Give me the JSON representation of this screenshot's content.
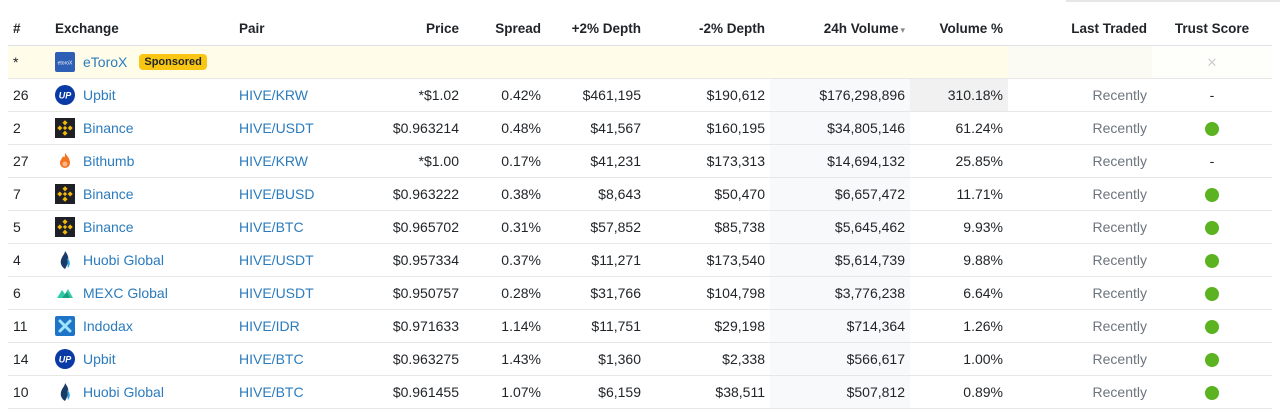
{
  "headers": {
    "rank": "#",
    "exchange": "Exchange",
    "pair": "Pair",
    "price": "Price",
    "spread": "Spread",
    "depth_plus": "+2% Depth",
    "depth_minus": "-2% Depth",
    "volume": "24h Volume",
    "volume_pct": "Volume %",
    "last_traded": "Last Traded",
    "trust": "Trust Score"
  },
  "sponsored": {
    "rank": "*",
    "exchange": "eToroX",
    "badge": "Sponsored",
    "logo_text": "etoroX"
  },
  "colors": {
    "trust_green": "#5cb322",
    "link": "#2b7bbd",
    "badge": "#f9c713"
  },
  "rows": [
    {
      "rank": "26",
      "exchange": "Upbit",
      "icon": "upbit-icon",
      "pair": "HIVE/KRW",
      "price": "*$1.02",
      "spread": "0.42%",
      "depth_plus": "$461,195",
      "depth_minus": "$190,612",
      "volume": "$176,298,896",
      "volume_pct": "310.18%",
      "last_traded": "Recently",
      "trust": "-"
    },
    {
      "rank": "2",
      "exchange": "Binance",
      "icon": "binance-icon",
      "pair": "HIVE/USDT",
      "price": "$0.963214",
      "spread": "0.48%",
      "depth_plus": "$41,567",
      "depth_minus": "$160,195",
      "volume": "$34,805,146",
      "volume_pct": "61.24%",
      "last_traded": "Recently",
      "trust": "green"
    },
    {
      "rank": "27",
      "exchange": "Bithumb",
      "icon": "bithumb-icon",
      "pair": "HIVE/KRW",
      "price": "*$1.00",
      "spread": "0.17%",
      "depth_plus": "$41,231",
      "depth_minus": "$173,313",
      "volume": "$14,694,132",
      "volume_pct": "25.85%",
      "last_traded": "Recently",
      "trust": "-"
    },
    {
      "rank": "7",
      "exchange": "Binance",
      "icon": "binance-icon",
      "pair": "HIVE/BUSD",
      "price": "$0.963222",
      "spread": "0.38%",
      "depth_plus": "$8,643",
      "depth_minus": "$50,470",
      "volume": "$6,657,472",
      "volume_pct": "11.71%",
      "last_traded": "Recently",
      "trust": "green"
    },
    {
      "rank": "5",
      "exchange": "Binance",
      "icon": "binance-icon",
      "pair": "HIVE/BTC",
      "price": "$0.965702",
      "spread": "0.31%",
      "depth_plus": "$57,852",
      "depth_minus": "$85,738",
      "volume": "$5,645,462",
      "volume_pct": "9.93%",
      "last_traded": "Recently",
      "trust": "green"
    },
    {
      "rank": "4",
      "exchange": "Huobi Global",
      "icon": "huobi-icon",
      "pair": "HIVE/USDT",
      "price": "$0.957334",
      "spread": "0.37%",
      "depth_plus": "$11,271",
      "depth_minus": "$173,540",
      "volume": "$5,614,739",
      "volume_pct": "9.88%",
      "last_traded": "Recently",
      "trust": "green"
    },
    {
      "rank": "6",
      "exchange": "MEXC Global",
      "icon": "mexc-icon",
      "pair": "HIVE/USDT",
      "price": "$0.950757",
      "spread": "0.28%",
      "depth_plus": "$31,766",
      "depth_minus": "$104,798",
      "volume": "$3,776,238",
      "volume_pct": "6.64%",
      "last_traded": "Recently",
      "trust": "green"
    },
    {
      "rank": "11",
      "exchange": "Indodax",
      "icon": "indodax-icon",
      "pair": "HIVE/IDR",
      "price": "$0.971633",
      "spread": "1.14%",
      "depth_plus": "$11,751",
      "depth_minus": "$29,198",
      "volume": "$714,364",
      "volume_pct": "1.26%",
      "last_traded": "Recently",
      "trust": "green"
    },
    {
      "rank": "14",
      "exchange": "Upbit",
      "icon": "upbit-icon",
      "pair": "HIVE/BTC",
      "price": "$0.963275",
      "spread": "1.43%",
      "depth_plus": "$1,360",
      "depth_minus": "$2,338",
      "volume": "$566,617",
      "volume_pct": "1.00%",
      "last_traded": "Recently",
      "trust": "green"
    },
    {
      "rank": "10",
      "exchange": "Huobi Global",
      "icon": "huobi-icon",
      "pair": "HIVE/BTC",
      "price": "$0.961455",
      "spread": "1.07%",
      "depth_plus": "$6,159",
      "depth_minus": "$38,511",
      "volume": "$507,812",
      "volume_pct": "0.89%",
      "last_traded": "Recently",
      "trust": "green"
    }
  ]
}
